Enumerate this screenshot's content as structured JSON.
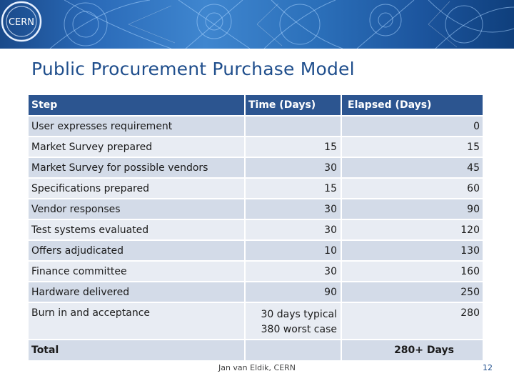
{
  "banner": {
    "logo_text": "CERN"
  },
  "slide": {
    "title": "Public Procurement Purchase Model"
  },
  "table": {
    "headers": {
      "step": "Step",
      "time": "Time (Days)",
      "elapsed": "Elapsed (Days)"
    },
    "rows": [
      {
        "step": "User expresses requirement",
        "time": "",
        "elapsed": "0"
      },
      {
        "step": "Market Survey prepared",
        "time": "15",
        "elapsed": "15"
      },
      {
        "step": "Market Survey for possible vendors",
        "time": "30",
        "elapsed": "45"
      },
      {
        "step": "Specifications prepared",
        "time": "15",
        "elapsed": "60"
      },
      {
        "step": "Vendor responses",
        "time": "30",
        "elapsed": "90"
      },
      {
        "step": "Test systems evaluated",
        "time": "30",
        "elapsed": "120"
      },
      {
        "step": "Offers adjudicated",
        "time": "10",
        "elapsed": "130"
      },
      {
        "step": "Finance committee",
        "time": "30",
        "elapsed": "160"
      },
      {
        "step": "Hardware delivered",
        "time": "90",
        "elapsed": "250"
      },
      {
        "step": "Burn in and acceptance",
        "time_line1": "30 days typical",
        "time_line2": "380 worst case",
        "elapsed": "280"
      }
    ],
    "total": {
      "label": "Total",
      "time": "",
      "elapsed": "280+ Days"
    }
  },
  "footer": {
    "author": "Jan van Eldik, CERN",
    "page_number": "12"
  },
  "colors": {
    "header_bg": "#2c5590",
    "row_dark": "#d3dbe8",
    "row_light": "#e8ecf3",
    "title": "#1f4e8c"
  }
}
